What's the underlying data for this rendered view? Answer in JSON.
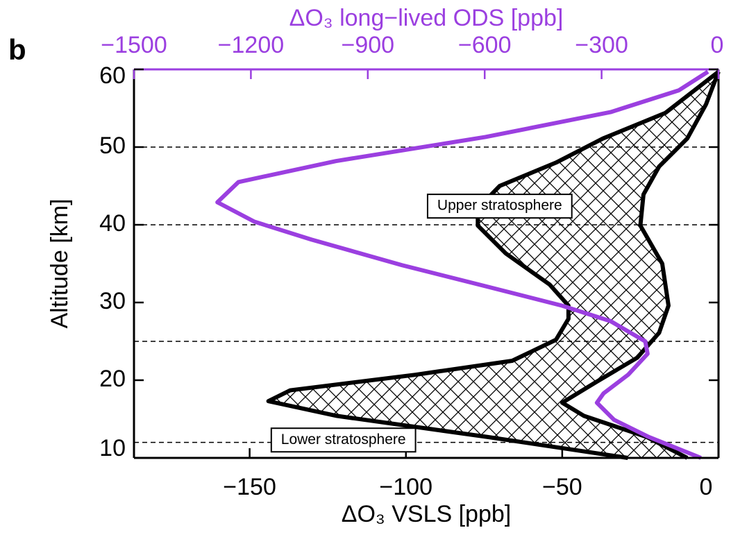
{
  "chart_data": {
    "type": "profile",
    "panel_label": "b",
    "xlabel": "ΔO₃ VSLS [ppb]",
    "x2label": "ΔO₃ long−lived ODS [ppb]",
    "ylabel": "Altitude [km]",
    "xlim": [
      -187,
      0
    ],
    "xticks": [
      {
        "value": -150,
        "label": "−150"
      },
      {
        "value": -100,
        "label": "−100"
      },
      {
        "value": -50,
        "label": "−50"
      },
      0
    ],
    "x2lim": [
      -1500,
      0
    ],
    "x2ticks": [
      {
        "value": -1500,
        "label": "−1500"
      },
      {
        "value": -1200,
        "label": "−1200"
      },
      {
        "value": -900,
        "label": "−900"
      },
      {
        "value": -600,
        "label": "−600"
      },
      {
        "value": -300,
        "label": "−300"
      },
      0
    ],
    "x2color": "#9b3fe0",
    "ylim": [
      10,
      60
    ],
    "yticks": [
      10,
      20,
      30,
      40,
      50,
      60
    ],
    "hlines": [
      12,
      25,
      40,
      50
    ],
    "annotations": [
      {
        "text": "Upper stratosphere",
        "x": -70,
        "y": 42.4
      },
      {
        "text": "Lower stratosphere",
        "x": -120,
        "y": 12.3
      }
    ],
    "hatch_between": [
      0,
      1
    ],
    "series": [
      {
        "color": "#000000",
        "axis": "x",
        "values": [
          0,
          -17,
          -37,
          -52,
          -70,
          -77,
          -77,
          -68,
          -54,
          -48,
          -48,
          -52,
          -66,
          -97,
          -137,
          -144,
          -122,
          -74,
          -29
        ],
        "altitude": [
          59.7,
          54.4,
          51.1,
          48,
          45,
          42.1,
          39.9,
          36.3,
          32.3,
          29.6,
          27.9,
          25.2,
          22.5,
          20.7,
          18.7,
          17.3,
          15.4,
          12.7,
          10
        ]
      },
      {
        "color": "#000000",
        "axis": "x",
        "values": [
          0,
          -4,
          -10,
          -19,
          -24,
          -25,
          -18,
          -16,
          -19,
          -26,
          -39,
          -50,
          -43,
          -23,
          -10
        ],
        "altitude": [
          59.7,
          55.5,
          51.1,
          47.5,
          43.9,
          39.9,
          35,
          29.6,
          26.1,
          22.9,
          19.8,
          17.1,
          15.4,
          12.7,
          10
        ]
      },
      {
        "color": "#9b3fe0",
        "axis": "x2",
        "values": [
          -27,
          -102,
          -277,
          -598,
          -982,
          -1232,
          -1286,
          -1191,
          -1045,
          -812,
          -598,
          -402,
          -277,
          -188,
          -182,
          -232,
          -295,
          -312,
          -268,
          -179,
          -45
        ],
        "altitude": [
          59.7,
          57.3,
          54.5,
          51.3,
          48.2,
          45.5,
          42.9,
          40.4,
          38.1,
          34.8,
          32.1,
          29.6,
          27.6,
          25,
          23.4,
          20.7,
          18.3,
          17.1,
          14.9,
          12.7,
          10
        ]
      }
    ]
  }
}
